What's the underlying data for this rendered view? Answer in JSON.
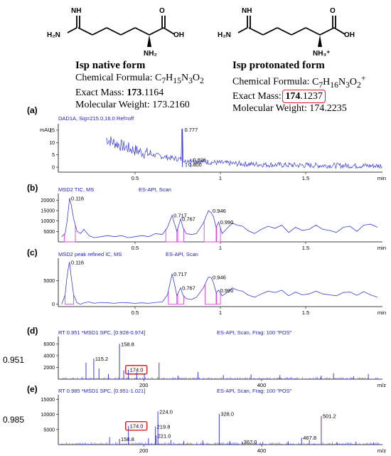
{
  "structures": [
    {
      "title": "Isp native form",
      "formula_prefix": "Chemical Formula: ",
      "formula_html": "C<sub>7</sub>H<sub>15</sub>N<sub>3</sub>O<sub>2</sub>",
      "exact_mass_prefix": "Exact Mass: ",
      "exact_mass_int": "173",
      "exact_mass_dec": ".1164",
      "mw": "Molecular Weight: 173.2160",
      "groups": {
        "imine": "NH",
        "left_nh2": "H₂N",
        "acid": "OH",
        "alpha": "NH₂"
      }
    },
    {
      "title": "Isp protonated form",
      "formula_prefix": "Chemical Formula: ",
      "formula_html": "C<sub>7</sub>H<sub>16</sub>N<sub>3</sub>O<sub>2</sub><sup>+</sup>",
      "exact_mass_prefix": "Exact Mass: ",
      "exact_mass_int": "174",
      "exact_mass_dec": ".1237",
      "mw": "Molecular Weight: 174.2235",
      "groups": {
        "imine": "NH",
        "left_nh2": "H₂N",
        "acid": "OH",
        "alpha": "NH₃⁺"
      }
    }
  ],
  "colors": {
    "trace": "#3b3bd6",
    "header": "#2222bb",
    "peak_fill": "#e040e0",
    "highlight": "#e31b23"
  },
  "chart_data": [
    {
      "panel": "(a)",
      "type": "line",
      "header": "DAD1A, Sig=215.0,16.0  Ref=off",
      "ylabel": "mAU",
      "xunit": "min",
      "xlim": [
        0.05,
        1.95
      ],
      "ylim": [
        -2,
        17
      ],
      "yticks": [
        0,
        5,
        10,
        15
      ],
      "xticks": [
        0.5,
        1,
        1.5
      ],
      "peaks": [
        {
          "x": 0.777,
          "y": 15.5,
          "label": "0.777"
        },
        {
          "x": 0.826,
          "y": 3.3,
          "label": "0.826"
        },
        {
          "x": 0.8,
          "y": 1.5,
          "label": "0.800"
        }
      ]
    },
    {
      "panel": "(b)",
      "type": "line",
      "header": "MSD2 TIC, MS",
      "header2": "ES-API, Scan",
      "xunit": "min",
      "xlim": [
        0.05,
        1.95
      ],
      "ylim": [
        0,
        22500
      ],
      "yticks": [
        5000,
        10000,
        15000,
        20000
      ],
      "ytick_labels": [
        "5000",
        "10000",
        "15000",
        "20000"
      ],
      "xticks": [
        0.5,
        1,
        1.5
      ],
      "x": [
        0.07,
        0.09,
        0.1,
        0.11,
        0.116,
        0.125,
        0.14,
        0.16,
        0.18,
        0.2,
        0.23,
        0.26,
        0.3,
        0.34,
        0.38,
        0.42,
        0.46,
        0.5,
        0.54,
        0.58,
        0.62,
        0.66,
        0.69,
        0.717,
        0.73,
        0.745,
        0.767,
        0.78,
        0.8,
        0.83,
        0.86,
        0.9,
        0.93,
        0.946,
        0.96,
        0.975,
        0.99,
        1.01,
        1.04,
        1.07,
        1.1,
        1.13,
        1.16,
        1.2,
        1.24,
        1.28,
        1.32,
        1.36,
        1.4,
        1.44,
        1.48,
        1.52,
        1.56,
        1.6,
        1.64,
        1.68,
        1.72,
        1.76,
        1.8,
        1.84,
        1.88,
        1.92
      ],
      "y": [
        2500,
        4000,
        9000,
        16000,
        21000,
        18000,
        11000,
        5000,
        4000,
        6000,
        3000,
        2000,
        2500,
        3000,
        2500,
        3000,
        2000,
        2500,
        3000,
        2500,
        4000,
        3500,
        7000,
        12800,
        9000,
        5000,
        11000,
        7000,
        4000,
        3500,
        4000,
        9000,
        15000,
        14000,
        12000,
        7000,
        9500,
        4000,
        6500,
        9000,
        8000,
        7500,
        5500,
        4000,
        6000,
        7500,
        6500,
        8000,
        4500,
        7000,
        5500,
        6000,
        8000,
        6000,
        5500,
        4500,
        7000,
        7500,
        5000,
        8000,
        8500,
        7000
      ],
      "peak_regions": [
        [
          0.086,
          0.15
        ],
        [
          0.68,
          0.745
        ],
        [
          0.75,
          0.785
        ],
        [
          0.905,
          0.975
        ],
        [
          0.978,
          1.0
        ]
      ],
      "labels": [
        {
          "x": 0.116,
          "y": 21000,
          "text": "0.116"
        },
        {
          "x": 0.717,
          "y": 12800,
          "text": "0.717"
        },
        {
          "x": 0.767,
          "y": 11000,
          "text": "0.767"
        },
        {
          "x": 0.946,
          "y": 15000,
          "text": "0.946"
        },
        {
          "x": 0.99,
          "y": 9500,
          "text": "0.990"
        }
      ]
    },
    {
      "panel": "(c)",
      "type": "line",
      "header": "MSD2 peak refined IC, MS",
      "header2": "ES-API, Scan",
      "xunit": "min",
      "xlim": [
        0.05,
        1.95
      ],
      "ylim": [
        -500,
        9500
      ],
      "yticks": [
        0,
        5000
      ],
      "ytick_labels": [
        "0",
        "5000"
      ],
      "xticks": [
        0.5,
        1,
        1.5
      ],
      "x": [
        0.07,
        0.09,
        0.1,
        0.11,
        0.116,
        0.125,
        0.14,
        0.16,
        0.18,
        0.2,
        0.23,
        0.26,
        0.3,
        0.34,
        0.38,
        0.42,
        0.46,
        0.5,
        0.54,
        0.58,
        0.62,
        0.66,
        0.69,
        0.717,
        0.73,
        0.745,
        0.767,
        0.78,
        0.8,
        0.83,
        0.86,
        0.9,
        0.93,
        0.946,
        0.96,
        0.975,
        0.99,
        1.01,
        1.04,
        1.07,
        1.1,
        1.13,
        1.16,
        1.2,
        1.24,
        1.28,
        1.32,
        1.36,
        1.4,
        1.44,
        1.48,
        1.52,
        1.56,
        1.6,
        1.64,
        1.68,
        1.72,
        1.76,
        1.8,
        1.84,
        1.88,
        1.92
      ],
      "y": [
        0,
        2000,
        5500,
        8000,
        9000,
        6000,
        2000,
        300,
        0,
        300,
        500,
        200,
        400,
        300,
        200,
        400,
        300,
        200,
        300,
        200,
        400,
        500,
        2000,
        6500,
        4500,
        1800,
        3500,
        2000,
        1200,
        1000,
        1500,
        3500,
        5800,
        5700,
        4500,
        2500,
        3000,
        1800,
        2500,
        3500,
        3000,
        2800,
        2000,
        1500,
        2200,
        2800,
        2500,
        3000,
        1800,
        2600,
        2000,
        2200,
        2800,
        2200,
        2000,
        1800,
        2500,
        2600,
        1900,
        2700,
        2000,
        1500
      ],
      "peak_regions": [
        [
          0.09,
          0.14
        ],
        [
          0.695,
          0.745
        ],
        [
          0.75,
          0.785
        ],
        [
          0.91,
          0.975
        ],
        [
          0.978,
          1.0
        ]
      ],
      "labels": [
        {
          "x": 0.116,
          "y": 9000,
          "text": "0.116"
        },
        {
          "x": 0.717,
          "y": 6500,
          "text": "0.717"
        },
        {
          "x": 0.767,
          "y": 3500,
          "text": "0.767"
        },
        {
          "x": 0.946,
          "y": 5800,
          "text": "0.946"
        },
        {
          "x": 0.99,
          "y": 3000,
          "text": "0.990"
        }
      ]
    },
    {
      "panel": "(d)",
      "type": "bar",
      "header": "RT 0.951 *MSD1 SPC, [0.928-0.974]",
      "header2": "ES-API, Scan, Frag: 100 \"POS\"",
      "side_label": "0.951",
      "xunit": "m/z",
      "xlim": [
        55,
        605
      ],
      "ylim": [
        0,
        7000
      ],
      "yticks": [
        2000,
        4000,
        6000
      ],
      "ytick_labels": [
        "2000",
        "4000",
        "6000"
      ],
      "xticks": [
        200,
        400
      ],
      "peaks": [
        {
          "x": 115.2,
          "y": 3500,
          "label": "115.2"
        },
        {
          "x": 158.8,
          "y": 6000,
          "label": "158.8"
        },
        {
          "x": 174.0,
          "y": 1600,
          "label": "174.0",
          "highlight": true
        },
        {
          "x": 102,
          "y": 2800
        },
        {
          "x": 124,
          "y": 1800
        },
        {
          "x": 140,
          "y": 900
        },
        {
          "x": 166,
          "y": 1500
        },
        {
          "x": 188,
          "y": 1200
        },
        {
          "x": 201,
          "y": 900
        },
        {
          "x": 226,
          "y": 2800
        },
        {
          "x": 258,
          "y": 600
        },
        {
          "x": 292,
          "y": 1200
        },
        {
          "x": 335,
          "y": 700
        },
        {
          "x": 382,
          "y": 800
        },
        {
          "x": 431,
          "y": 700
        },
        {
          "x": 501,
          "y": 600
        },
        {
          "x": 522,
          "y": 1000
        },
        {
          "x": 556,
          "y": 500
        },
        {
          "x": 581,
          "y": 900
        }
      ]
    },
    {
      "panel": "(e)",
      "type": "bar",
      "header": "RT 0.985 *MSD1 SPC, [0.951-1.021]",
      "header2": "ES-API, Scan, Frag: 100 \"POS\"",
      "side_label": "0.985",
      "xunit": "m/z",
      "xlim": [
        55,
        605
      ],
      "ylim": [
        0,
        16000
      ],
      "yticks": [
        5000,
        10000,
        15000
      ],
      "ytick_labels": [
        "5000",
        "10000",
        "15000"
      ],
      "xticks": [
        200,
        400
      ],
      "peaks": [
        {
          "x": 158.8,
          "y": 1900,
          "label": "158.8"
        },
        {
          "x": 174.0,
          "y": 6200,
          "label": "174.0",
          "highlight": true
        },
        {
          "x": 224.0,
          "y": 11000,
          "label": "224.0"
        },
        {
          "x": 219.8,
          "y": 6000,
          "label": "219.8"
        },
        {
          "x": 221.0,
          "y": 3000,
          "label": "221.0"
        },
        {
          "x": 328.0,
          "y": 10200,
          "label": "328.0"
        },
        {
          "x": 367.0,
          "y": 1000,
          "label": "367.0"
        },
        {
          "x": 467.8,
          "y": 2300,
          "label": "467.8"
        },
        {
          "x": 501.2,
          "y": 9500,
          "label": "501.2"
        },
        {
          "x": 142,
          "y": 2500
        },
        {
          "x": 208,
          "y": 2100
        },
        {
          "x": 246,
          "y": 1500
        },
        {
          "x": 268,
          "y": 1200
        },
        {
          "x": 300,
          "y": 1400
        },
        {
          "x": 346,
          "y": 1200
        },
        {
          "x": 402,
          "y": 900
        },
        {
          "x": 445,
          "y": 1100
        },
        {
          "x": 481,
          "y": 1500
        },
        {
          "x": 528,
          "y": 800
        },
        {
          "x": 560,
          "y": 1000
        },
        {
          "x": 590,
          "y": 700
        }
      ]
    }
  ]
}
